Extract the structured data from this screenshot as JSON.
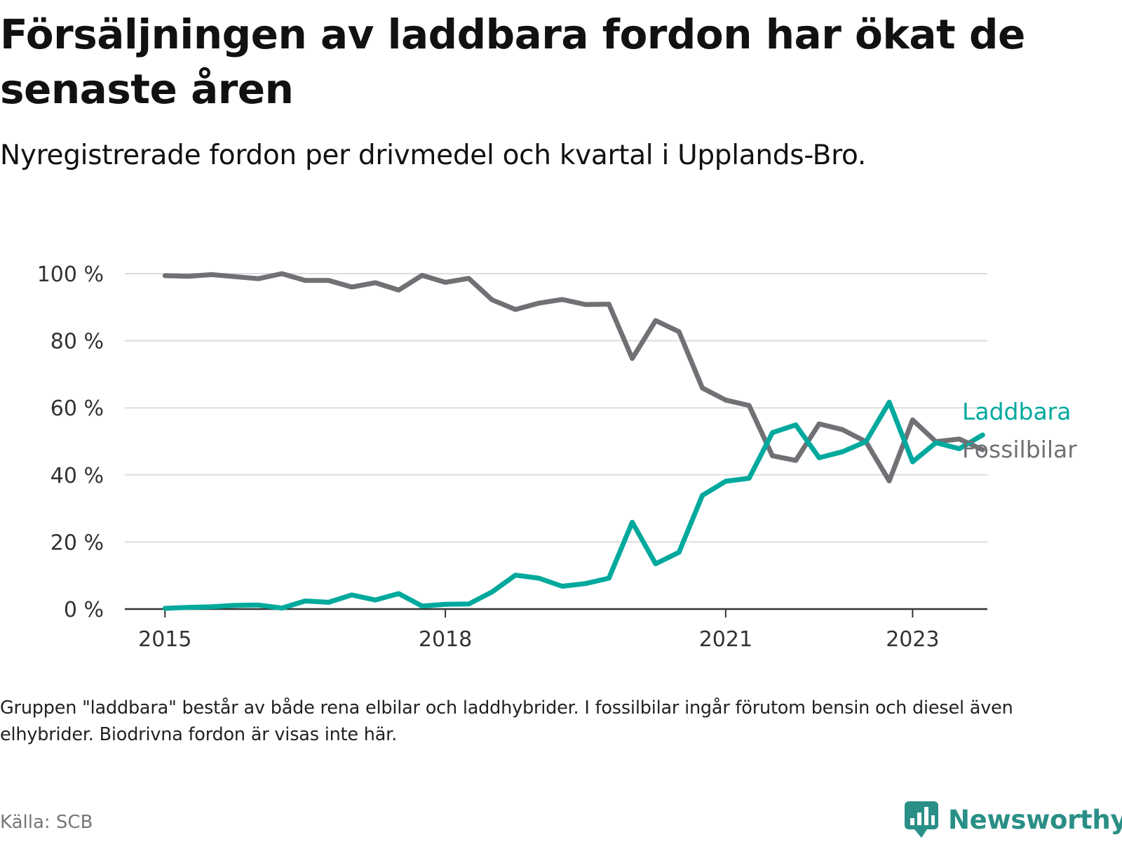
{
  "header": {
    "title": "Försäljningen av laddbara fordon har ökat de senaste åren",
    "subtitle": "Nyregistrerade fordon per drivmedel och kvartal i Upplands-Bro."
  },
  "footer": {
    "note": "Gruppen \"laddbara\" består av både rena elbilar och laddhybrider. I fossilbilar ingår förutom bensin och diesel även elhybrider. Biodrivna fordon är visas inte här.",
    "source": "Källa: SCB",
    "brand": "Newsworthy"
  },
  "colors": {
    "laddbara": "#00a99d",
    "fossil": "#707075",
    "grid": "#dddddd",
    "axis": "#333333"
  },
  "chart_data": {
    "type": "line",
    "title": "Försäljningen av laddbara fordon har ökat de senaste åren",
    "xlabel": "",
    "ylabel": "",
    "ylim": [
      0,
      100
    ],
    "y_ticks": [
      {
        "value": 0,
        "label": "0 %"
      },
      {
        "value": 20,
        "label": "20 %"
      },
      {
        "value": 40,
        "label": "40 %"
      },
      {
        "value": 60,
        "label": "60 %"
      },
      {
        "value": 80,
        "label": "80 %"
      },
      {
        "value": 100,
        "label": "100 %"
      }
    ],
    "x_ticks": [
      {
        "value": 2015,
        "label": "2015"
      },
      {
        "value": 2018,
        "label": "2018"
      },
      {
        "value": 2021,
        "label": "2021"
      },
      {
        "value": 2023,
        "label": "2023"
      }
    ],
    "x_range": [
      2014.57,
      2023.8
    ],
    "grid": true,
    "legend": "direct labels at line ends (right)",
    "x": [
      2015.0,
      2015.25,
      2015.5,
      2015.75,
      2016.0,
      2016.25,
      2016.5,
      2016.75,
      2017.0,
      2017.25,
      2017.5,
      2017.75,
      2018.0,
      2018.25,
      2018.5,
      2018.75,
      2019.0,
      2019.25,
      2019.5,
      2019.75,
      2020.0,
      2020.25,
      2020.5,
      2020.75,
      2021.0,
      2021.25,
      2021.5,
      2021.75,
      2022.0,
      2022.25,
      2022.5,
      2022.75,
      2023.0,
      2023.25,
      2023.5,
      2023.75
    ],
    "series": [
      {
        "name": "Laddbara",
        "color_key": "laddbara",
        "values": [
          0.2,
          0.5,
          0.7,
          1.1,
          1.2,
          0.3,
          2.4,
          2.0,
          4.2,
          2.7,
          4.6,
          0.9,
          1.4,
          1.5,
          5.1,
          10.1,
          9.2,
          6.8,
          7.6,
          9.2,
          25.9,
          13.5,
          16.9,
          33.9,
          38.1,
          39.0,
          52.6,
          54.9,
          45.1,
          46.9,
          49.9,
          61.7,
          43.9,
          49.6,
          47.8,
          51.9
        ]
      },
      {
        "name": "Fossilbilar",
        "color_key": "fossil",
        "values": [
          99.4,
          99.2,
          99.7,
          99.1,
          98.5,
          100.0,
          98.0,
          98.0,
          96.0,
          97.3,
          95.1,
          99.5,
          97.4,
          98.6,
          92.2,
          89.3,
          91.2,
          92.3,
          90.8,
          90.9,
          74.7,
          86.0,
          82.7,
          65.9,
          62.3,
          60.7,
          45.7,
          44.3,
          55.2,
          53.5,
          49.9,
          38.2,
          56.4,
          49.9,
          50.7,
          47.5
        ]
      }
    ]
  }
}
